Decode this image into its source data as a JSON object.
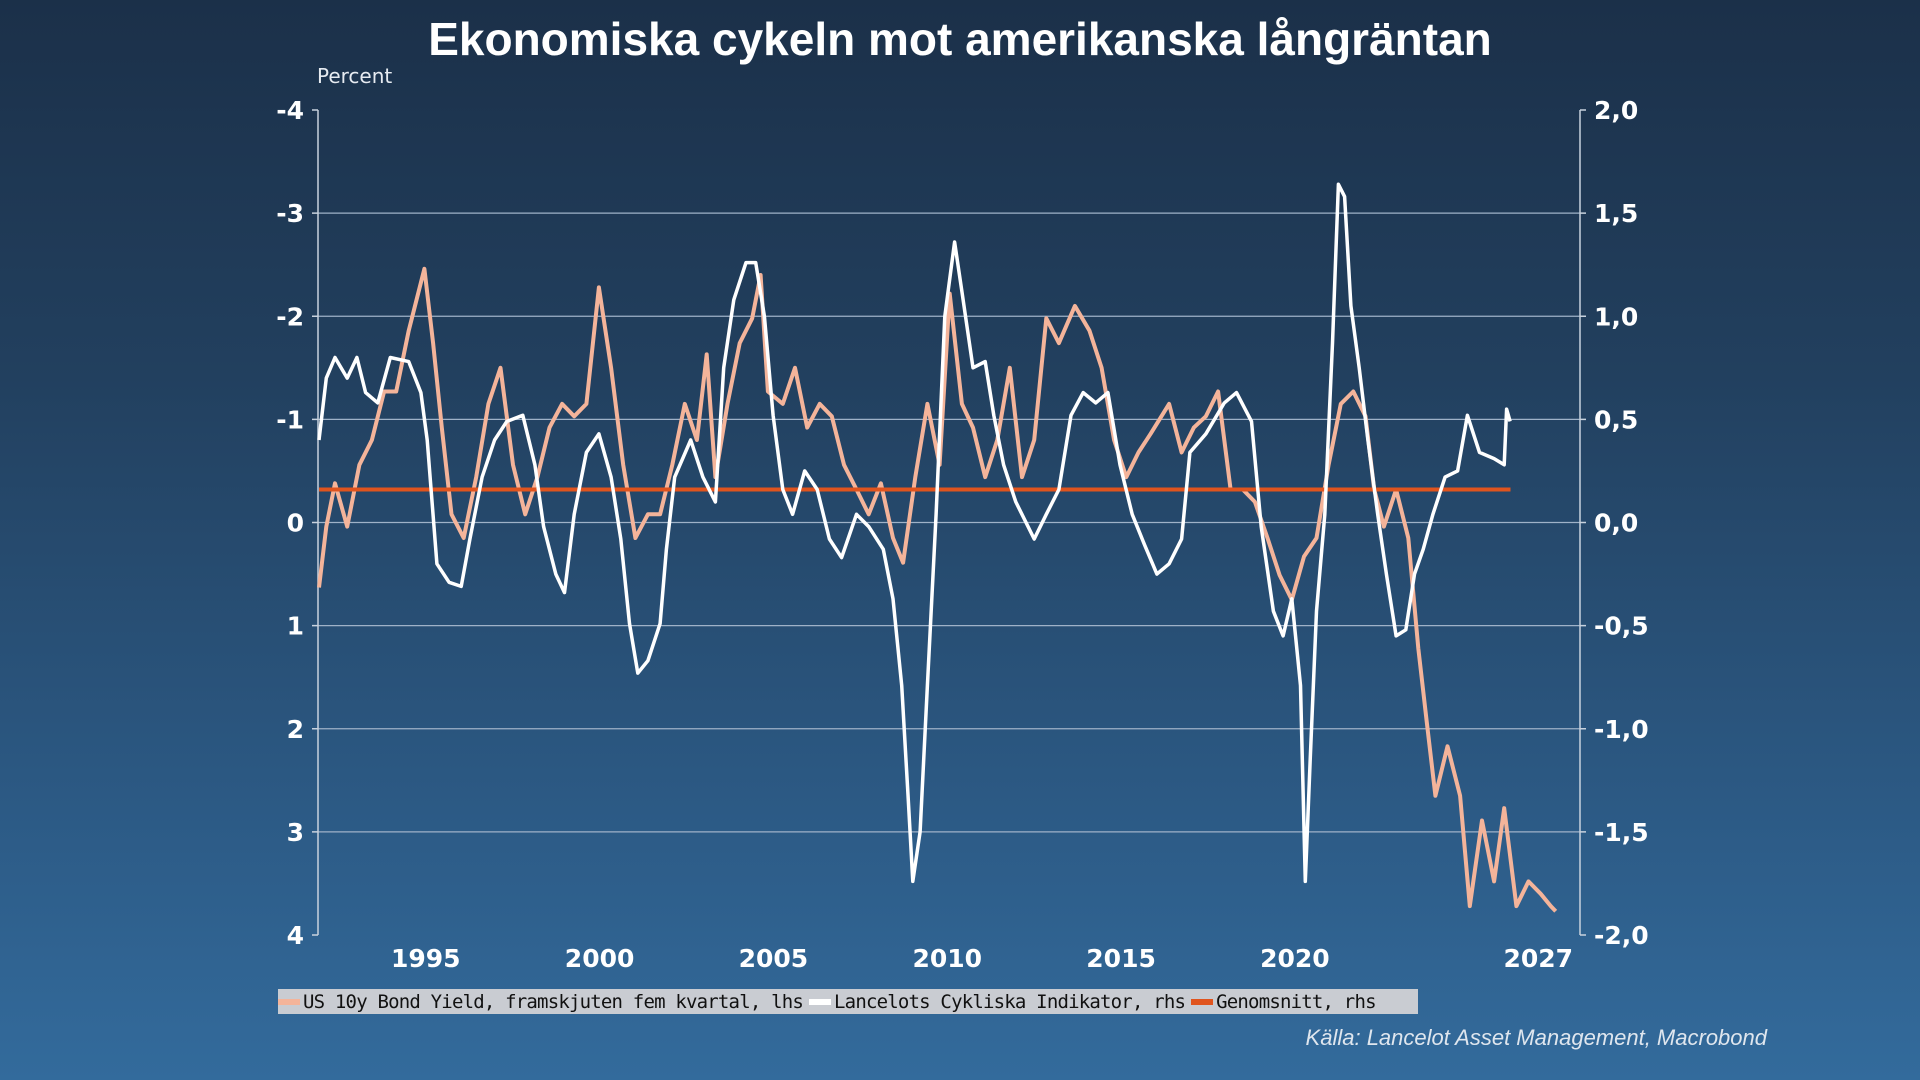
{
  "chart_data": {
    "type": "line",
    "title": "Ekonomiska cykeln mot amerikanska långräntan",
    "ylabel_left": "Percent",
    "left_axis": {
      "range": [
        -4,
        4
      ],
      "inverted": true,
      "ticks": [
        "-4",
        "-3",
        "-2",
        "-1",
        "0",
        "1",
        "2",
        "3",
        "4"
      ]
    },
    "right_axis": {
      "range": [
        -2,
        2
      ],
      "ticks": [
        "2,0",
        "1,5",
        "1,0",
        "0,5",
        "0,0",
        "-0,5",
        "-1,0",
        "-1,5",
        "-2,0"
      ]
    },
    "x_axis": {
      "range": [
        1991.9,
        2028.2
      ],
      "ticks": [
        "1995",
        "2000",
        "2005",
        "2010",
        "2015",
        "2020",
        "2027"
      ]
    },
    "grid": true,
    "legend_placement": "bottom",
    "source": "Källa: Lancelot Asset Management, Macrobond",
    "series": [
      {
        "name": "US 10y Bond Yield, framskjuten fem kvartal, lhs",
        "axis": "left",
        "color": "#f4b49a",
        "x": [
          1991.93,
          1992.14,
          1992.39,
          1992.74,
          1993.09,
          1993.45,
          1993.8,
          1994.15,
          1994.51,
          1994.96,
          1995.21,
          1995.46,
          1995.74,
          1996.09,
          1996.45,
          1996.8,
          1997.15,
          1997.51,
          1997.86,
          1998.21,
          1998.56,
          1998.92,
          1999.27,
          1999.62,
          1999.98,
          2000.33,
          2000.68,
          2001.03,
          2001.39,
          2001.74,
          2002.09,
          2002.45,
          2002.8,
          2003.08,
          2003.33,
          2003.68,
          2004.03,
          2004.39,
          2004.63,
          2004.84,
          2005.27,
          2005.62,
          2005.97,
          2006.33,
          2006.68,
          2007.03,
          2007.39,
          2007.74,
          2008.09,
          2008.44,
          2008.73,
          2009.08,
          2009.43,
          2009.78,
          2010.07,
          2010.42,
          2010.74,
          2011.09,
          2011.44,
          2011.8,
          2012.15,
          2012.5,
          2012.85,
          2013.21,
          2013.67,
          2014.09,
          2014.44,
          2014.8,
          2015.15,
          2015.5,
          2015.85,
          2016.38,
          2016.74,
          2017.09,
          2017.44,
          2017.79,
          2018.15,
          2018.5,
          2018.85,
          2019.21,
          2019.56,
          2019.91,
          2020.26,
          2020.62,
          2020.97,
          2021.32,
          2021.68,
          2022.03,
          2022.28,
          2022.56,
          2022.91,
          2023.26,
          2023.55,
          2023.79,
          2024.04,
          2024.39,
          2024.75,
          2025.03,
          2025.38,
          2025.73,
          2026.02,
          2026.37,
          2026.72,
          2027.07,
          2027.36,
          2027.5
        ],
        "y": [
          0.63,
          0.04,
          -0.38,
          0.04,
          -0.56,
          -0.8,
          -1.27,
          -1.27,
          -1.86,
          -2.46,
          -1.74,
          -0.92,
          -0.08,
          0.15,
          -0.44,
          -1.15,
          -1.5,
          -0.56,
          -0.08,
          -0.44,
          -0.92,
          -1.15,
          -1.03,
          -1.15,
          -2.28,
          -1.5,
          -0.56,
          0.15,
          -0.08,
          -0.08,
          -0.56,
          -1.15,
          -0.8,
          -1.63,
          -0.44,
          -1.15,
          -1.74,
          -1.98,
          -2.4,
          -1.27,
          -1.15,
          -1.5,
          -0.92,
          -1.15,
          -1.03,
          -0.56,
          -0.32,
          -0.08,
          -0.38,
          0.15,
          0.39,
          -0.44,
          -1.15,
          -0.56,
          -2.22,
          -1.15,
          -0.92,
          -0.44,
          -0.8,
          -1.5,
          -0.44,
          -0.8,
          -1.98,
          -1.74,
          -2.1,
          -1.86,
          -1.5,
          -0.8,
          -0.44,
          -0.68,
          -0.86,
          -1.15,
          -0.68,
          -0.92,
          -1.03,
          -1.27,
          -0.32,
          -0.32,
          -0.2,
          0.15,
          0.51,
          0.75,
          0.33,
          0.15,
          -0.56,
          -1.15,
          -1.27,
          -1.03,
          -0.32,
          0.04,
          -0.32,
          0.15,
          1.22,
          1.93,
          2.65,
          2.17,
          2.65,
          3.72,
          2.89,
          3.48,
          2.77,
          3.72,
          3.48,
          3.6,
          3.72,
          3.77
        ]
      },
      {
        "name": "Lancelots Cykliska Indikator, rhs",
        "axis": "right",
        "color": "#ffffff",
        "x": [
          1991.93,
          1992.14,
          1992.39,
          1992.74,
          1993.02,
          1993.27,
          1993.62,
          1993.98,
          1994.51,
          1994.86,
          1995.04,
          1995.32,
          1995.67,
          1996.02,
          1996.27,
          1996.62,
          1996.98,
          1997.33,
          1997.79,
          1998.14,
          1998.39,
          1998.74,
          1998.99,
          1999.27,
          1999.62,
          1999.98,
          2000.33,
          2000.61,
          2000.86,
          2001.1,
          2001.39,
          2001.74,
          2001.92,
          2002.16,
          2002.62,
          2002.97,
          2003.33,
          2003.57,
          2003.86,
          2004.21,
          2004.49,
          2004.74,
          2004.99,
          2005.27,
          2005.55,
          2005.9,
          2006.26,
          2006.61,
          2006.96,
          2007.39,
          2007.74,
          2008.16,
          2008.44,
          2008.69,
          2008.87,
          2009.01,
          2009.22,
          2009.43,
          2009.68,
          2009.93,
          2010.21,
          2010.42,
          2010.74,
          2011.09,
          2011.34,
          2011.62,
          2011.97,
          2012.5,
          2012.85,
          2013.21,
          2013.56,
          2013.91,
          2014.27,
          2014.62,
          2014.97,
          2015.32,
          2015.68,
          2016.03,
          2016.38,
          2016.74,
          2016.98,
          2017.44,
          2017.97,
          2018.32,
          2018.75,
          2019.03,
          2019.38,
          2019.66,
          2019.91,
          2020.16,
          2020.3,
          2020.44,
          2020.62,
          2020.86,
          2021.08,
          2021.25,
          2021.43,
          2021.61,
          2021.85,
          2022.1,
          2022.38,
          2022.63,
          2022.91,
          2023.19,
          2023.44,
          2023.69,
          2023.97,
          2024.32,
          2024.68,
          2024.96,
          2025.31,
          2025.73,
          2026.02,
          2026.09,
          2026.19
        ],
        "y": [
          0.4,
          0.7,
          0.8,
          0.7,
          0.8,
          0.63,
          0.58,
          0.8,
          0.78,
          0.63,
          0.4,
          -0.2,
          -0.29,
          -0.31,
          -0.08,
          0.22,
          0.4,
          0.49,
          0.52,
          0.28,
          -0.02,
          -0.25,
          -0.34,
          0.04,
          0.34,
          0.43,
          0.22,
          -0.08,
          -0.49,
          -0.73,
          -0.67,
          -0.49,
          -0.13,
          0.22,
          0.4,
          0.22,
          0.1,
          0.75,
          1.08,
          1.26,
          1.26,
          1.0,
          0.52,
          0.16,
          0.04,
          0.25,
          0.16,
          -0.08,
          -0.17,
          0.04,
          -0.02,
          -0.13,
          -0.37,
          -0.79,
          -1.32,
          -1.74,
          -1.5,
          -0.79,
          0.04,
          1.0,
          1.36,
          1.12,
          0.75,
          0.78,
          0.52,
          0.28,
          0.1,
          -0.08,
          0.04,
          0.16,
          0.52,
          0.63,
          0.58,
          0.63,
          0.28,
          0.04,
          -0.11,
          -0.25,
          -0.2,
          -0.08,
          0.34,
          0.43,
          0.58,
          0.63,
          0.49,
          -0.02,
          -0.43,
          -0.55,
          -0.37,
          -0.79,
          -1.74,
          -1.15,
          -0.43,
          0.04,
          0.87,
          1.64,
          1.58,
          1.05,
          0.75,
          0.4,
          0.04,
          -0.25,
          -0.55,
          -0.52,
          -0.25,
          -0.13,
          0.04,
          0.22,
          0.25,
          0.52,
          0.34,
          0.31,
          0.28,
          0.55,
          0.49
        ]
      },
      {
        "name": "Genomsnitt, rhs",
        "axis": "right",
        "color": "#e0541e",
        "x": [
          1991.93,
          2026.2
        ],
        "y": [
          0.16,
          0.16
        ]
      }
    ]
  }
}
